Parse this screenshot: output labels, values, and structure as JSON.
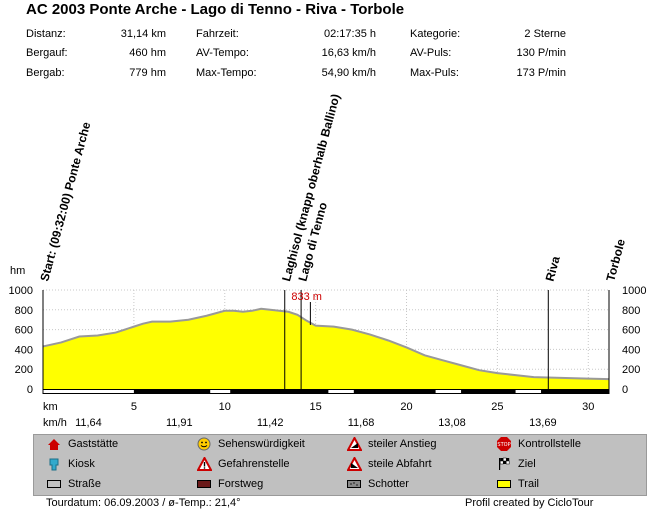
{
  "title": "AC 2003 Ponte Arche - Lago di Tenno - Riva - Torbole",
  "stats": {
    "col1": [
      {
        "label": "Distanz:",
        "value": "31,14 km"
      },
      {
        "label": "Bergauf:",
        "value": "460 hm"
      },
      {
        "label": "Bergab:",
        "value": "779 hm"
      }
    ],
    "col2": [
      {
        "label": "Fahrzeit:",
        "value": "02:17:35 h"
      },
      {
        "label": "AV-Tempo:",
        "value": "16,63 km/h"
      },
      {
        "label": "Max-Tempo:",
        "value": "54,90 km/h"
      }
    ],
    "col3": [
      {
        "label": "Kategorie:",
        "value": "2 Sterne"
      },
      {
        "label": "AV-Puls:",
        "value": "130 P/min"
      },
      {
        "label": "Max-Puls:",
        "value": "173 P/min"
      }
    ]
  },
  "chart_data": {
    "type": "area",
    "x_unit_label": "km",
    "y_unit_label": "hm",
    "xlim": [
      0,
      31.14
    ],
    "ylim": [
      0,
      1000
    ],
    "y_ticks": [
      0,
      200,
      400,
      600,
      800,
      1000
    ],
    "x_ticks": [
      5,
      10,
      15,
      20,
      25,
      30
    ],
    "x": [
      0,
      1,
      2,
      3,
      4,
      5,
      5.5,
      6,
      7,
      8,
      9,
      10,
      10.5,
      11,
      11.5,
      12,
      12.5,
      13,
      13.5,
      14,
      14.5,
      15,
      16,
      17,
      18,
      19,
      20,
      21,
      22,
      23,
      24,
      25,
      26,
      27,
      28,
      29,
      30,
      31.14
    ],
    "y": [
      430,
      470,
      530,
      540,
      570,
      630,
      660,
      680,
      680,
      700,
      740,
      790,
      790,
      780,
      790,
      810,
      800,
      790,
      780,
      750,
      690,
      640,
      630,
      600,
      550,
      490,
      420,
      340,
      290,
      240,
      190,
      160,
      140,
      120,
      115,
      110,
      105,
      100
    ],
    "peak_label": "833 m",
    "peak_x": 13.5,
    "speed_label": "km/h",
    "speeds": [
      {
        "x": 2.5,
        "value": "11,64"
      },
      {
        "x": 7.5,
        "value": "11,91"
      },
      {
        "x": 12.5,
        "value": "11,42"
      },
      {
        "x": 17.5,
        "value": "11,68"
      },
      {
        "x": 22.5,
        "value": "13,08"
      },
      {
        "x": 27.5,
        "value": "13,69"
      }
    ],
    "waypoints": [
      {
        "x": 0,
        "label": "Start: (09:32:00) Ponte Arche"
      },
      {
        "x": 13.3,
        "label": "Laghisol (knapp oberhalb Ballino)"
      },
      {
        "x": 14.2,
        "label": "Lago di Tenno"
      },
      {
        "x": 27.8,
        "label": "Riva"
      },
      {
        "x": 31.14,
        "label": "Torbole"
      }
    ]
  },
  "legend": [
    {
      "icon": "gasthouse-icon",
      "label": "Gaststätte"
    },
    {
      "icon": "smiley-icon",
      "label": "Sehenswürdigkeit"
    },
    {
      "icon": "steep-climb-icon",
      "label": "steiler Anstieg"
    },
    {
      "icon": "stop-sign-icon",
      "label": "Kontrollstelle"
    },
    {
      "icon": "kiosk-icon",
      "label": "Kiosk"
    },
    {
      "icon": "danger-icon",
      "label": "Gefahrenstelle"
    },
    {
      "icon": "steep-descent-icon",
      "label": "steile Abfahrt"
    },
    {
      "icon": "finish-flag-icon",
      "label": "Ziel"
    },
    {
      "icon": "road-icon",
      "label": "Straße"
    },
    {
      "icon": "forest-road-icon",
      "label": "Forstweg"
    },
    {
      "icon": "gravel-icon",
      "label": "Schotter"
    },
    {
      "icon": "trail-icon",
      "label": "Trail"
    }
  ],
  "footer": {
    "left": "Tourdatum: 06.09.2003  /  ø-Temp.: 21,4°",
    "right": "Profil created by CicloTour"
  },
  "colors": {
    "area_fill": "#ffff00",
    "profile_line": "#999999",
    "peak_label": "#cc0000",
    "legend_bg": "#c0c0c0",
    "gasthouse": "#cc0000",
    "kiosk": "#33aacc"
  }
}
